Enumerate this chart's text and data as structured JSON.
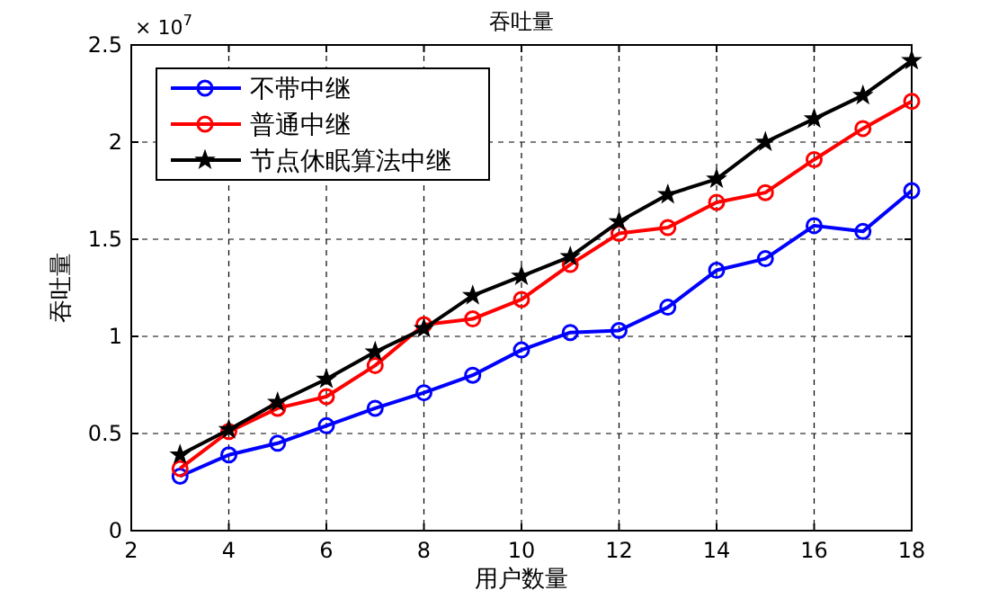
{
  "chart_data": {
    "type": "line",
    "title": "吞吐量",
    "xlabel": "用户数量",
    "ylabel": "吞吐量",
    "annotations": [
      "× 10$^{7}$"
    ],
    "x": [
      3,
      4,
      5,
      6,
      7,
      8,
      9,
      10,
      11,
      12,
      13,
      14,
      15,
      16,
      17,
      18
    ],
    "series": [
      {
        "name": "不带中继",
        "color": "#0000ff",
        "marker": "circle",
        "values": [
          0.28,
          0.39,
          0.45,
          0.54,
          0.63,
          0.71,
          0.8,
          0.93,
          1.02,
          1.03,
          1.15,
          1.34,
          1.4,
          1.57,
          1.54,
          1.75
        ]
      },
      {
        "name": "普通中继",
        "color": "#ff0000",
        "marker": "circle",
        "values": [
          0.32,
          0.51,
          0.63,
          0.69,
          0.85,
          1.06,
          1.09,
          1.19,
          1.37,
          1.53,
          1.56,
          1.69,
          1.74,
          1.91,
          2.07,
          2.21
        ]
      },
      {
        "name": "节点休眠算法中继",
        "color": "#000000",
        "marker": "star",
        "values": [
          0.39,
          0.52,
          0.66,
          0.78,
          0.92,
          1.04,
          1.21,
          1.31,
          1.41,
          1.59,
          1.73,
          1.81,
          2.0,
          2.12,
          2.24,
          2.42
        ]
      }
    ],
    "xlim": [
      2,
      18
    ],
    "xticks": [
      2,
      4,
      6,
      8,
      10,
      12,
      14,
      16,
      18
    ],
    "ylim": [
      0,
      2.5
    ],
    "yticks": [
      0,
      0.5,
      1,
      1.5,
      2,
      2.5
    ],
    "grid": true,
    "legend": "top left",
    "line_style": "solid"
  }
}
